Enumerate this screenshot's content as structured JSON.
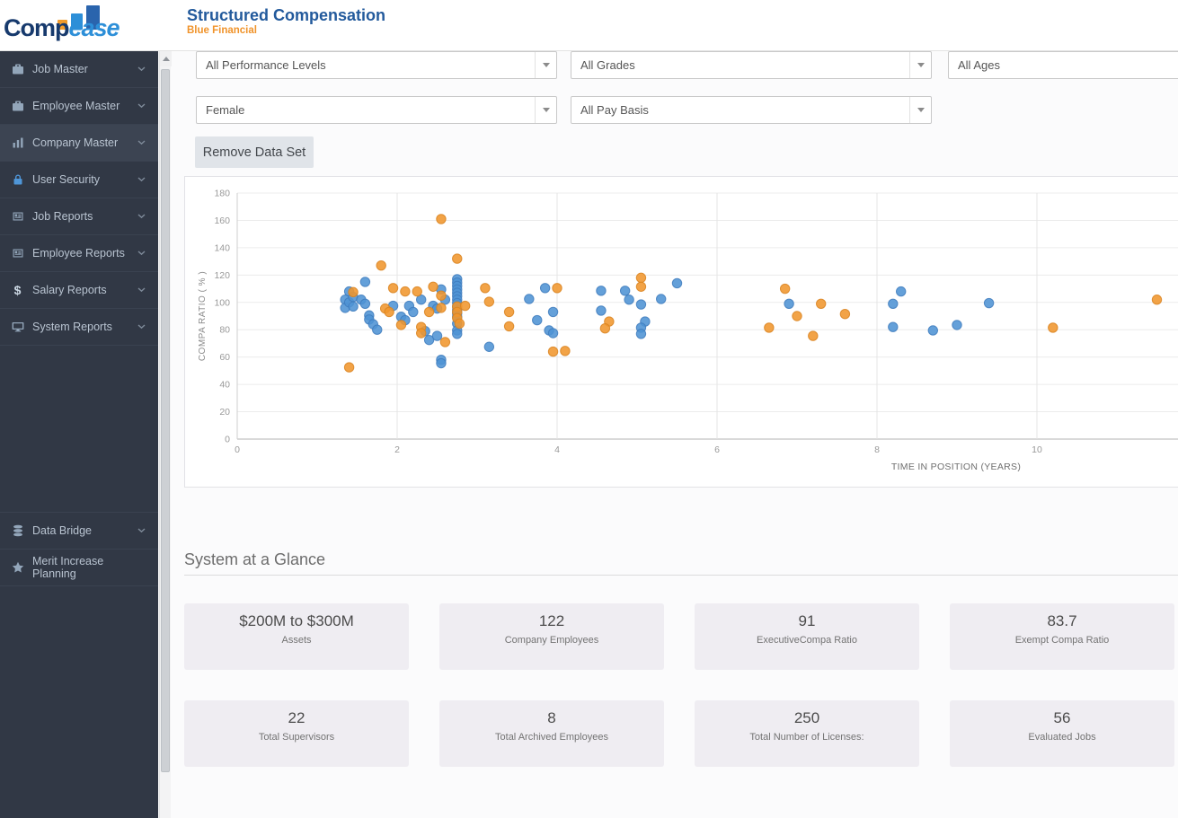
{
  "header": {
    "logo_comp": "Comp",
    "logo_ease": "ease",
    "title": "Structured Compensation",
    "subtitle": "Blue Financial"
  },
  "sidebar": {
    "items": [
      {
        "label": "Job Master",
        "icon": "briefcase-icon"
      },
      {
        "label": "Employee Master",
        "icon": "briefcase-icon"
      },
      {
        "label": "Company Master",
        "icon": "bar-chart-icon"
      },
      {
        "label": "User Security",
        "icon": "lock-icon"
      },
      {
        "label": "Job Reports",
        "icon": "report-icon"
      },
      {
        "label": "Employee Reports",
        "icon": "report-icon"
      },
      {
        "label": "Salary Reports",
        "icon": "dollar-icon"
      },
      {
        "label": "System Reports",
        "icon": "monitor-icon"
      }
    ],
    "lower_items": [
      {
        "label": "Data Bridge",
        "icon": "database-icon"
      },
      {
        "label": "Merit Increase Planning",
        "icon": "star-icon"
      }
    ]
  },
  "filters": {
    "dropdowns": [
      {
        "value": "All Performance Levels"
      },
      {
        "value": "All Grades"
      },
      {
        "value": "All Ages"
      },
      {
        "value": "Female"
      },
      {
        "value": "All Pay Basis"
      }
    ]
  },
  "toolbar": {
    "remove_button_label": "Remove Data Set"
  },
  "chart_data": {
    "type": "scatter",
    "xlabel": "TIME IN POSITION (YEARS)",
    "ylabel": "COMPA RATIO ( % )",
    "xlim": [
      0,
      11.8
    ],
    "ylim": [
      0,
      180
    ],
    "xticks": [
      0,
      2,
      4,
      6,
      8,
      10
    ],
    "yticks": [
      0,
      20,
      40,
      60,
      80,
      100,
      120,
      140,
      160,
      180
    ],
    "grid": true,
    "legend": "none",
    "series": [
      {
        "name": "blue",
        "color": "#4f93d4",
        "stroke": "#3e7bbd",
        "points": [
          [
            1.35,
            102
          ],
          [
            1.35,
            96
          ],
          [
            1.4,
            108
          ],
          [
            1.4,
            100
          ],
          [
            1.45,
            97
          ],
          [
            1.45,
            104
          ],
          [
            1.55,
            102
          ],
          [
            1.6,
            115
          ],
          [
            1.6,
            99
          ],
          [
            1.65,
            90.5
          ],
          [
            1.65,
            87.5
          ],
          [
            1.7,
            84
          ],
          [
            1.75,
            80
          ],
          [
            1.95,
            97.5
          ],
          [
            2.05,
            89.5
          ],
          [
            2.1,
            87
          ],
          [
            2.15,
            97.5
          ],
          [
            2.2,
            93
          ],
          [
            2.3,
            102
          ],
          [
            2.35,
            79
          ],
          [
            2.4,
            72.5
          ],
          [
            2.45,
            97.5
          ],
          [
            2.5,
            95.5
          ],
          [
            2.5,
            75.5
          ],
          [
            2.55,
            109.5
          ],
          [
            2.6,
            102
          ],
          [
            2.55,
            58
          ],
          [
            2.55,
            55.5
          ],
          [
            2.75,
            117
          ],
          [
            2.75,
            114.5
          ],
          [
            2.75,
            112
          ],
          [
            2.75,
            109.5
          ],
          [
            2.75,
            107
          ],
          [
            2.75,
            104.5
          ],
          [
            2.75,
            102
          ],
          [
            2.75,
            99.5
          ],
          [
            2.75,
            97
          ],
          [
            2.75,
            94.5
          ],
          [
            2.75,
            92
          ],
          [
            2.75,
            89.5
          ],
          [
            2.75,
            84.5
          ],
          [
            2.75,
            79.5
          ],
          [
            2.75,
            77
          ],
          [
            3.15,
            67.5
          ],
          [
            3.65,
            102.5
          ],
          [
            3.75,
            87
          ],
          [
            3.85,
            110.5
          ],
          [
            3.9,
            79.5
          ],
          [
            3.95,
            77.5
          ],
          [
            3.95,
            93
          ],
          [
            4.55,
            108.5
          ],
          [
            4.55,
            94
          ],
          [
            4.85,
            108.5
          ],
          [
            4.9,
            102
          ],
          [
            5.05,
            98.5
          ],
          [
            5.1,
            86
          ],
          [
            5.05,
            81.5
          ],
          [
            5.05,
            77
          ],
          [
            5.3,
            102.5
          ],
          [
            5.5,
            114
          ],
          [
            6.9,
            99
          ],
          [
            8.3,
            108
          ],
          [
            8.2,
            99
          ],
          [
            8.2,
            82
          ],
          [
            8.7,
            79.5
          ],
          [
            9.0,
            83.5
          ],
          [
            9.4,
            99.5
          ]
        ]
      },
      {
        "name": "orange",
        "color": "#f0962e",
        "stroke": "#d9821f",
        "points": [
          [
            1.4,
            52.5
          ],
          [
            1.45,
            107.5
          ],
          [
            1.8,
            127
          ],
          [
            1.85,
            95.5
          ],
          [
            1.9,
            93
          ],
          [
            1.95,
            110.5
          ],
          [
            2.05,
            83.5
          ],
          [
            2.1,
            108
          ],
          [
            2.25,
            108
          ],
          [
            2.3,
            82
          ],
          [
            2.3,
            77.5
          ],
          [
            2.4,
            93
          ],
          [
            2.45,
            111.5
          ],
          [
            2.55,
            105
          ],
          [
            2.55,
            96
          ],
          [
            2.55,
            161
          ],
          [
            2.6,
            71
          ],
          [
            2.75,
            132
          ],
          [
            2.75,
            97
          ],
          [
            2.75,
            93
          ],
          [
            2.75,
            88.5
          ],
          [
            2.78,
            84.5
          ],
          [
            2.85,
            97.5
          ],
          [
            3.1,
            110.5
          ],
          [
            3.15,
            100.5
          ],
          [
            3.4,
            93
          ],
          [
            3.4,
            82.5
          ],
          [
            3.95,
            64
          ],
          [
            4.1,
            64.5
          ],
          [
            4.0,
            110.5
          ],
          [
            4.65,
            86
          ],
          [
            4.6,
            81
          ],
          [
            5.05,
            118
          ],
          [
            5.05,
            111.5
          ],
          [
            6.65,
            81.5
          ],
          [
            6.85,
            110
          ],
          [
            7.0,
            90
          ],
          [
            7.2,
            75.5
          ],
          [
            7.3,
            99
          ],
          [
            7.6,
            91.5
          ],
          [
            10.2,
            81.5
          ],
          [
            11.5,
            102
          ]
        ]
      }
    ]
  },
  "glance": {
    "heading": "System at a Glance",
    "cards": [
      {
        "value": "$200M to $300M",
        "label": "Assets"
      },
      {
        "value": "122",
        "label": "Company Employees"
      },
      {
        "value": "91",
        "label": "ExecutiveCompa Ratio"
      },
      {
        "value": "83.7",
        "label": "Exempt Compa Ratio"
      },
      {
        "value": "22",
        "label": "Total Supervisors"
      },
      {
        "value": "8",
        "label": "Total Archived Employees"
      },
      {
        "value": "250",
        "label": "Total Number of Licenses:"
      },
      {
        "value": "56",
        "label": "Evaluated Jobs"
      }
    ]
  }
}
